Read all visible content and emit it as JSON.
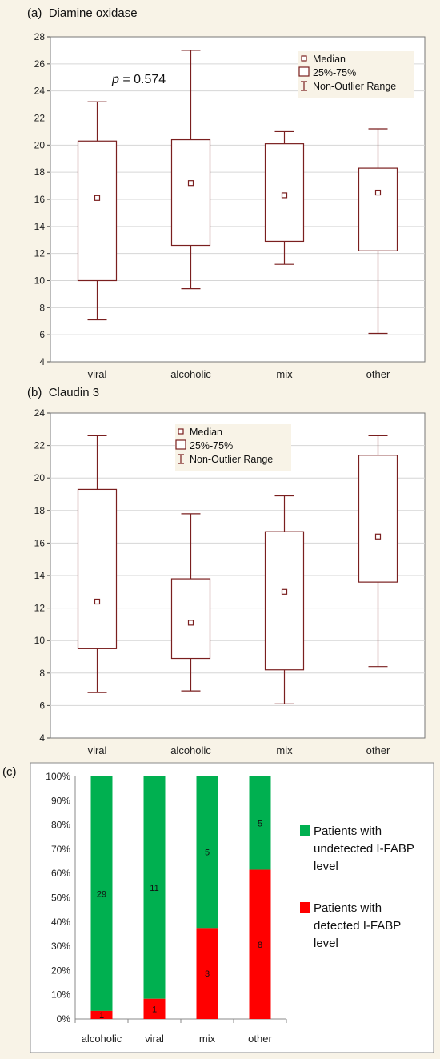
{
  "chart_data": [
    {
      "panel": "(a)",
      "type": "box",
      "title": "Diamine oxidase",
      "categories": [
        "viral",
        "alcoholic",
        "mix",
        "other"
      ],
      "median": [
        16.1,
        17.2,
        16.3,
        16.5
      ],
      "q1": [
        10.0,
        12.6,
        12.9,
        12.2
      ],
      "q3": [
        20.3,
        20.4,
        20.1,
        18.3
      ],
      "whisker_low": [
        7.1,
        9.4,
        11.2,
        6.1
      ],
      "whisker_high": [
        23.2,
        27.0,
        21.0,
        21.2
      ],
      "ylim": [
        4,
        28
      ],
      "yticks": [
        4,
        6,
        8,
        10,
        12,
        14,
        16,
        18,
        20,
        22,
        24,
        26,
        28
      ],
      "grid": true,
      "annotation_p": "p",
      "annotation_value": "= 0.574",
      "legend": [
        "Median",
        "25%-75%",
        "Non-Outlier Range"
      ],
      "legend_position": "top-right"
    },
    {
      "panel": "(b)",
      "type": "box",
      "title": "Claudin 3",
      "categories": [
        "viral",
        "alcoholic",
        "mix",
        "other"
      ],
      "median": [
        12.4,
        11.1,
        13.0,
        16.4
      ],
      "q1": [
        9.5,
        8.9,
        8.2,
        13.6
      ],
      "q3": [
        19.3,
        13.8,
        16.7,
        21.4
      ],
      "whisker_low": [
        6.8,
        6.9,
        6.1,
        8.4
      ],
      "whisker_high": [
        22.6,
        17.8,
        18.9,
        22.6
      ],
      "ylim": [
        4,
        24
      ],
      "yticks": [
        4,
        6,
        8,
        10,
        12,
        14,
        16,
        18,
        20,
        22,
        24
      ],
      "grid": true,
      "legend": [
        "Median",
        "25%-75%",
        "Non-Outlier Range"
      ],
      "legend_position": "top-center"
    },
    {
      "panel": "(c)",
      "type": "bar",
      "stacked": true,
      "percent": true,
      "categories": [
        "alcoholic",
        "viral",
        "mix",
        "other"
      ],
      "series": [
        {
          "name": "Patients with detected I-FABP level",
          "counts": [
            1,
            1,
            3,
            8
          ],
          "color": "#ff0000"
        },
        {
          "name": "Patients with undetected I-FABP level",
          "counts": [
            29,
            11,
            5,
            5
          ],
          "color": "#00b050"
        }
      ],
      "legend_green_lines": [
        "Patients with",
        "undetected I-FABP",
        "level"
      ],
      "legend_red_lines": [
        "Patients with",
        "detected I-FABP",
        "level"
      ],
      "ylim": [
        0,
        100
      ],
      "ytick_labels": [
        "0%",
        "10%",
        "20%",
        "30%",
        "40%",
        "50%",
        "60%",
        "70%",
        "80%",
        "90%",
        "100%"
      ],
      "legend_position": "right"
    }
  ],
  "colors": {
    "box": "#7a1f1f",
    "grid": "#d6d6d6",
    "green": "#00b050",
    "red": "#ff0000"
  }
}
